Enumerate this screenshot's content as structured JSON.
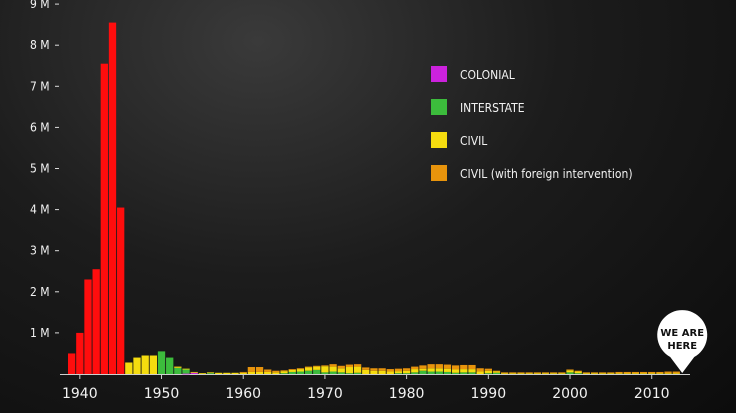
{
  "chart_data": {
    "type": "bar",
    "stacked": true,
    "title": "",
    "xlabel": "",
    "ylabel": "",
    "ylim": [
      0,
      9000000
    ],
    "xlim": [
      1938,
      2014
    ],
    "y_tick_values": [
      1000000,
      2000000,
      3000000,
      4000000,
      5000000,
      6000000,
      7000000,
      8000000,
      9000000
    ],
    "y_tick_labels": [
      "1 M",
      "2 M",
      "3 M",
      "4 M",
      "5 M",
      "6 M",
      "7 M",
      "8 M",
      "9 M"
    ],
    "x_tick_labels": [
      "1940",
      "1950",
      "1960",
      "1970",
      "1980",
      "1990",
      "2000",
      "2010"
    ],
    "legend_position": "top-right",
    "ww2": {
      "color": "#ff0d0d",
      "years": [
        1939,
        1940,
        1941,
        1942,
        1943,
        1944,
        1945
      ],
      "values": [
        500000,
        1000000,
        2300000,
        2550000,
        7550000,
        8550000,
        4050000
      ]
    },
    "years": [
      1946,
      1947,
      1948,
      1949,
      1950,
      1951,
      1952,
      1953,
      1954,
      1955,
      1956,
      1957,
      1958,
      1959,
      1960,
      1961,
      1962,
      1963,
      1964,
      1965,
      1966,
      1967,
      1968,
      1969,
      1970,
      1971,
      1972,
      1973,
      1974,
      1975,
      1976,
      1977,
      1978,
      1979,
      1980,
      1981,
      1982,
      1983,
      1984,
      1985,
      1986,
      1987,
      1988,
      1989,
      1990,
      1991,
      1992,
      1993,
      1994,
      1995,
      1996,
      1997,
      1998,
      1999,
      2000,
      2001,
      2002,
      2003,
      2004,
      2005,
      2006,
      2007,
      2008,
      2009,
      2010,
      2011,
      2012,
      2013
    ],
    "series": [
      {
        "name": "COLONIAL",
        "color": "#cc22dd",
        "values": [
          0,
          0,
          0,
          0,
          0,
          0,
          0,
          10000,
          30000,
          0,
          0,
          0,
          0,
          0,
          0,
          0,
          0,
          0,
          0,
          0,
          0,
          0,
          0,
          0,
          0,
          0,
          0,
          0,
          0,
          0,
          0,
          0,
          0,
          0,
          0,
          0,
          0,
          0,
          0,
          0,
          0,
          0,
          0,
          0,
          0,
          0,
          0,
          0,
          0,
          0,
          0,
          0,
          0,
          0,
          0,
          0,
          0,
          0,
          0,
          0,
          0,
          0,
          0,
          0,
          0,
          0,
          0,
          0
        ]
      },
      {
        "name": "INTERSTATE",
        "color": "#3cbc3c",
        "values": [
          0,
          0,
          0,
          0,
          550000,
          400000,
          150000,
          100000,
          0,
          0,
          20000,
          0,
          0,
          0,
          0,
          0,
          0,
          0,
          0,
          20000,
          50000,
          60000,
          80000,
          100000,
          40000,
          60000,
          40000,
          20000,
          30000,
          0,
          0,
          0,
          0,
          20000,
          20000,
          40000,
          80000,
          60000,
          60000,
          50000,
          30000,
          40000,
          40000,
          0,
          20000,
          30000,
          0,
          0,
          0,
          0,
          0,
          0,
          0,
          0,
          40000,
          20000,
          0,
          0,
          0,
          0,
          0,
          0,
          0,
          0,
          0,
          0,
          0,
          0
        ]
      },
      {
        "name": "CIVIL",
        "color": "#f5dc0f",
        "values": [
          280000,
          400000,
          450000,
          450000,
          0,
          0,
          30000,
          20000,
          20000,
          20000,
          20000,
          30000,
          30000,
          30000,
          30000,
          50000,
          50000,
          50000,
          40000,
          50000,
          50000,
          60000,
          80000,
          80000,
          150000,
          120000,
          100000,
          150000,
          150000,
          100000,
          80000,
          80000,
          60000,
          50000,
          60000,
          80000,
          50000,
          80000,
          80000,
          80000,
          80000,
          80000,
          80000,
          60000,
          60000,
          30000,
          20000,
          20000,
          20000,
          20000,
          20000,
          20000,
          20000,
          20000,
          50000,
          40000,
          20000,
          20000,
          20000,
          20000,
          20000,
          20000,
          20000,
          20000,
          20000,
          20000,
          20000,
          20000
        ]
      },
      {
        "name": "CIVIL (with foreign intervention)",
        "color": "#e8940c",
        "values": [
          0,
          0,
          0,
          0,
          0,
          0,
          0,
          0,
          0,
          0,
          0,
          0,
          0,
          0,
          20000,
          120000,
          120000,
          60000,
          40000,
          20000,
          20000,
          20000,
          20000,
          20000,
          20000,
          60000,
          60000,
          60000,
          60000,
          60000,
          60000,
          60000,
          60000,
          60000,
          60000,
          60000,
          80000,
          100000,
          100000,
          100000,
          100000,
          100000,
          100000,
          80000,
          50000,
          20000,
          20000,
          20000,
          20000,
          20000,
          20000,
          20000,
          20000,
          20000,
          20000,
          20000,
          20000,
          20000,
          20000,
          20000,
          30000,
          30000,
          30000,
          30000,
          30000,
          30000,
          40000,
          40000
        ]
      }
    ],
    "marker": {
      "year": 2013,
      "label_line1": "WE ARE",
      "label_line2": "HERE"
    }
  }
}
